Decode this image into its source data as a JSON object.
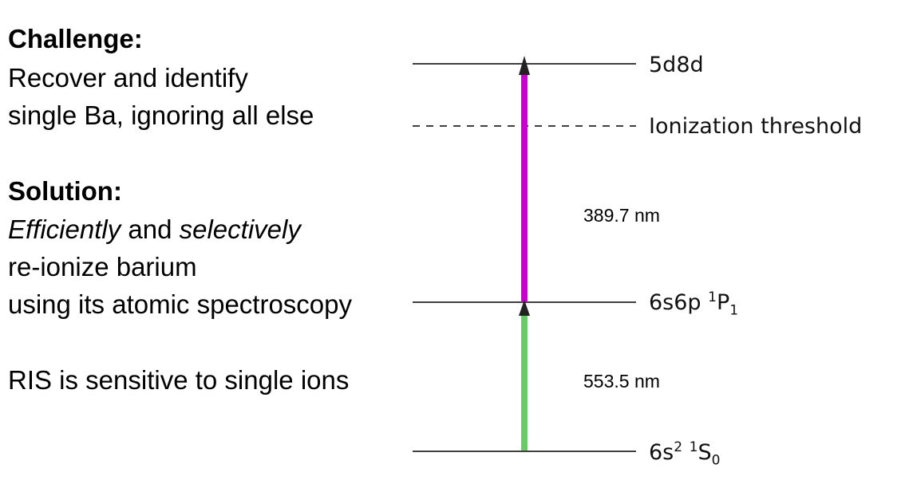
{
  "challenge": {
    "heading": "Challenge:",
    "line1": "Recover and identify",
    "line2": "single Ba, ignoring all else"
  },
  "solution": {
    "heading": "Solution:",
    "line1_em1": "Efficiently",
    "line1_mid": " and ",
    "line1_em2": "selectively",
    "line2": "re-ionize barium",
    "line3": "using its atomic spectroscopy"
  },
  "note": "RIS is sensitive to single ions",
  "levels": {
    "top": "5d8d",
    "threshold": "Ionization threshold",
    "mid_base": "6s6p ",
    "mid_sup": "1",
    "mid_letter": "P",
    "mid_sub": "1",
    "ground_base": "6s",
    "ground_sup1": "2",
    "ground_space": " ",
    "ground_sup2": "1",
    "ground_letter": "S",
    "ground_sub": "0"
  },
  "transitions": {
    "upper": "389.7 nm",
    "lower": "553.5 nm"
  },
  "colors": {
    "upper_arrow": "#cc00cc",
    "lower_arrow": "#66cc66"
  }
}
